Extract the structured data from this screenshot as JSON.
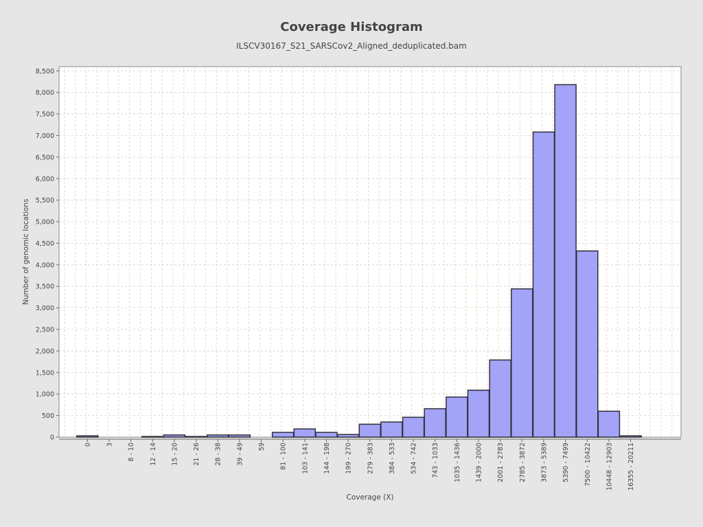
{
  "colors": {
    "background": "#e6e6e6",
    "plot_background": "#ffffff",
    "bar_fill": "#a3a3f7",
    "bar_stroke": "#2f2f3a",
    "grid": "#f0c8a8",
    "text": "#444444"
  },
  "chart_data": {
    "type": "bar",
    "title": "Coverage Histogram",
    "subtitle": "ILSCV30167_S21_SARSCov2_Aligned_deduplicated.bam",
    "xlabel": "Coverage (X)",
    "ylabel": "Number of genomic locations",
    "ylim": [
      0,
      8600
    ],
    "yticks": [
      0,
      500,
      1000,
      1500,
      2000,
      2500,
      3000,
      3500,
      4000,
      4500,
      5000,
      5500,
      6000,
      6500,
      7000,
      7500,
      8000,
      8500
    ],
    "ytick_labels": [
      "0",
      "500",
      "1,000",
      "1,500",
      "2,000",
      "2,500",
      "3,000",
      "3,500",
      "4,000",
      "4,500",
      "5,000",
      "5,500",
      "6,000",
      "6,500",
      "7,000",
      "7,500",
      "8,000",
      "8,500"
    ],
    "grid": true,
    "categories": [
      "0",
      "3",
      "8 - 10",
      "12 - 14",
      "15 - 20",
      "21 - 26",
      "28 - 38",
      "39 - 49",
      "59",
      "81 - 100",
      "103 - 141",
      "144 - 198",
      "199 - 270",
      "279 - 383",
      "384 - 533",
      "534 - 742",
      "743 - 1033",
      "1035 - 1436",
      "1439 - 2000",
      "2001 - 2783",
      "2785 - 3872",
      "3873 - 5389",
      "5390 - 7499",
      "7500 - 10422",
      "10448 - 12903",
      "16355 - 20211"
    ],
    "values": [
      30,
      0,
      0,
      15,
      50,
      15,
      50,
      50,
      0,
      110,
      190,
      110,
      60,
      300,
      350,
      460,
      660,
      930,
      1090,
      1790,
      3440,
      7080,
      8180,
      4320,
      600,
      30
    ]
  }
}
